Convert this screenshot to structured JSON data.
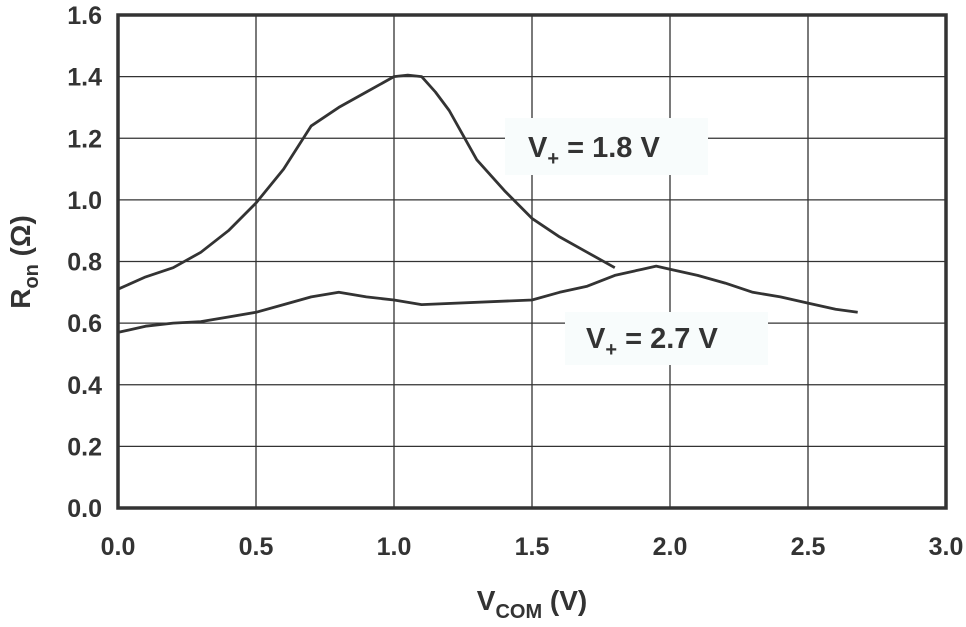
{
  "chart_data": {
    "type": "line",
    "title": "",
    "xlabel": {
      "main": "V",
      "sub": "COM",
      "unit": " (V)"
    },
    "ylabel": {
      "main": "R",
      "sub": "on",
      "unit": " (Ω)"
    },
    "xlim": [
      0,
      3.0
    ],
    "ylim": [
      0,
      1.6
    ],
    "grid": true,
    "xticks": [
      "0.0",
      "0.5",
      "1.0",
      "1.5",
      "2.0",
      "2.5",
      "3.0"
    ],
    "yticks": [
      "0.0",
      "0.2",
      "0.4",
      "0.6",
      "0.8",
      "1.0",
      "1.2",
      "1.4",
      "1.6"
    ],
    "line_color": "#333333",
    "series": [
      {
        "label": {
          "main": "V",
          "sub": "+",
          "rest": " = 1.8 V"
        },
        "x": [
          0,
          0.1,
          0.2,
          0.3,
          0.4,
          0.5,
          0.6,
          0.7,
          0.8,
          0.9,
          1.0,
          1.05,
          1.1,
          1.15,
          1.2,
          1.3,
          1.4,
          1.5,
          1.6,
          1.7,
          1.8
        ],
        "y": [
          0.71,
          0.75,
          0.78,
          0.83,
          0.9,
          0.99,
          1.1,
          1.24,
          1.3,
          1.35,
          1.4,
          1.405,
          1.4,
          1.35,
          1.29,
          1.13,
          1.03,
          0.94,
          0.88,
          0.83,
          0.78
        ]
      },
      {
        "label": {
          "main": "V",
          "sub": "+",
          "rest": " = 2.7 V"
        },
        "x": [
          0,
          0.1,
          0.2,
          0.3,
          0.4,
          0.5,
          0.6,
          0.7,
          0.8,
          0.9,
          1.0,
          1.1,
          1.5,
          1.6,
          1.7,
          1.8,
          1.9,
          1.95,
          2.0,
          2.1,
          2.2,
          2.3,
          2.4,
          2.5,
          2.6,
          2.68
        ],
        "y": [
          0.57,
          0.59,
          0.6,
          0.605,
          0.62,
          0.635,
          0.66,
          0.685,
          0.7,
          0.685,
          0.675,
          0.66,
          0.675,
          0.7,
          0.72,
          0.755,
          0.775,
          0.785,
          0.775,
          0.755,
          0.73,
          0.7,
          0.685,
          0.665,
          0.645,
          0.635
        ]
      }
    ]
  }
}
